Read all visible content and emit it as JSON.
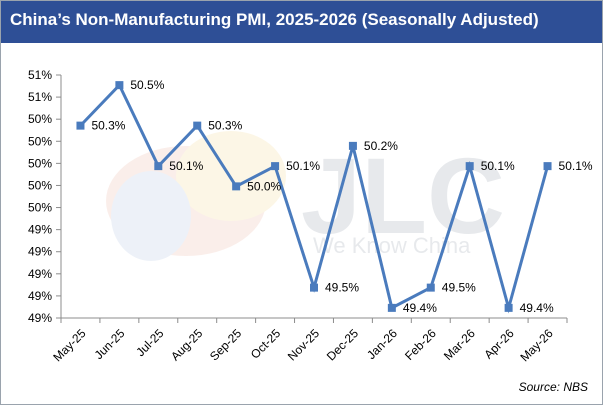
{
  "header": {
    "title": "China’s Non-Manufacturing PMI, 2025-2026 (Seasonally Adjusted)"
  },
  "watermark": {
    "logo_text": "JLC",
    "tagline": "We Know China"
  },
  "source": "Source: NBS",
  "colors": {
    "title_bar": "#2e4f96",
    "series_line": "#4a7bbd",
    "axis": "#8c8c8c",
    "text": "#000000"
  },
  "chart_data": {
    "type": "line",
    "title": "China’s Non-Manufacturing PMI, 2025-2026 (Seasonally Adjusted)",
    "xlabel": "",
    "ylabel": "",
    "ylim": [
      49.35,
      50.55
    ],
    "grid": false,
    "legend": "none",
    "y_tick_labels": [
      "51%",
      "51%",
      "50%",
      "50%",
      "50%",
      "50%",
      "50%",
      "49%",
      "49%",
      "49%",
      "49%",
      "49%"
    ],
    "categories": [
      "May-25",
      "Jun-25",
      "Jul-25",
      "Aug-25",
      "Sep-25",
      "Oct-25",
      "Nov-25",
      "Dec-25",
      "Jan-26",
      "Feb-26",
      "Mar-26",
      "Apr-26",
      "May-26"
    ],
    "series": [
      {
        "values": [
          50.3,
          50.5,
          50.1,
          50.3,
          50.0,
          50.1,
          49.5,
          50.2,
          49.4,
          49.5,
          50.1,
          49.4,
          50.1
        ],
        "data_labels": [
          "50.3%",
          "50.5%",
          "50.1%",
          "50.3%",
          "50.0%",
          "50.1%",
          "49.5%",
          "50.2%",
          "49.4%",
          "49.5%",
          "50.1%",
          "49.4%",
          "50.1%"
        ]
      }
    ]
  }
}
